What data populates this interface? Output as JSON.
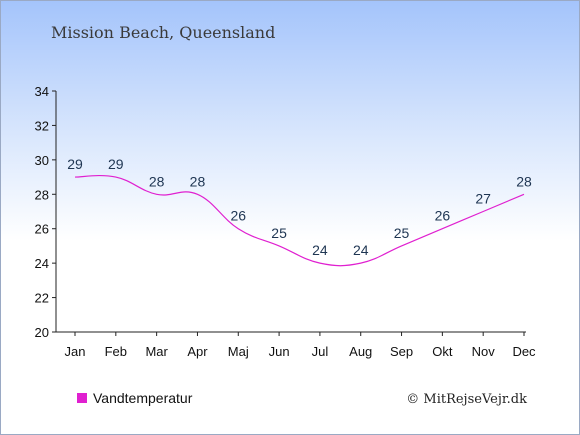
{
  "chart_data": {
    "type": "line",
    "title": "Mission Beach, Queensland",
    "categories": [
      "Jan",
      "Feb",
      "Mar",
      "Apr",
      "Maj",
      "Jun",
      "Jul",
      "Aug",
      "Sep",
      "Okt",
      "Nov",
      "Dec"
    ],
    "series": [
      {
        "name": "Vandtemperatur",
        "values": [
          29,
          29,
          28,
          28,
          26,
          25,
          24,
          24,
          25,
          26,
          27,
          28
        ],
        "color": "#e020d0"
      }
    ],
    "ylim": [
      20,
      34
    ],
    "yticks": [
      20,
      22,
      24,
      26,
      28,
      30,
      32,
      34
    ],
    "grid": false,
    "legend_position": "bottom-left"
  },
  "credit": "© MitRejseVejr.dk"
}
